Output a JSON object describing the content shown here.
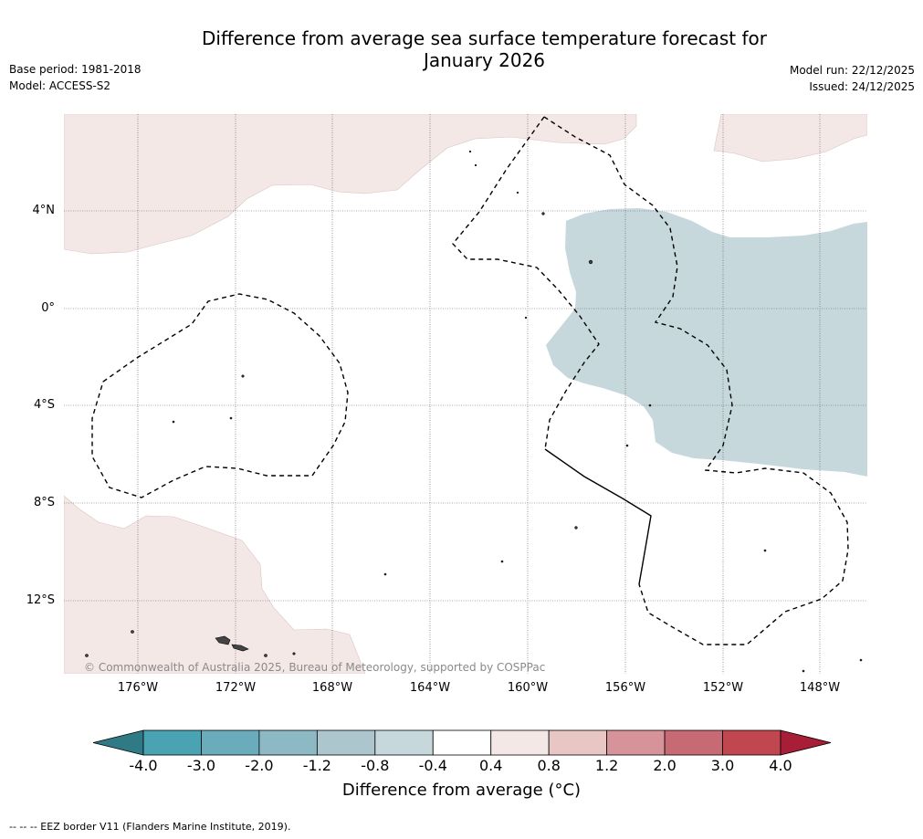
{
  "title": {
    "line1": "Difference from average sea surface temperature forecast for",
    "line2": "January 2026"
  },
  "meta": {
    "base_period": "Base period: 1981-2018",
    "model": "Model: ACCESS-S2",
    "model_run": "Model run: 22/12/2025",
    "issued": "Issued: 24/12/2025"
  },
  "map": {
    "lat_labels": [
      "4°N",
      "0°",
      "4°S",
      "8°S",
      "12°S"
    ],
    "lon_labels": [
      "176°W",
      "172°W",
      "168°W",
      "164°W",
      "160°W",
      "156°W",
      "152°W",
      "148°W"
    ],
    "copyright": "© Commonwealth of Australia 2025, Bureau of Meteorology, supported by COSPPac",
    "anomaly_regions": [
      {
        "name": "north-warm",
        "category": "0.4 to 0.8"
      },
      {
        "name": "northeast-warm",
        "category": "0.4 to 0.8"
      },
      {
        "name": "southwest-warm",
        "category": "0.4 to 0.8"
      },
      {
        "name": "east-cool",
        "category": "-0.8 to -0.4"
      }
    ],
    "colors": {
      "warm_light": "#f4e8e7",
      "cool_light": "#c7d8dd",
      "grid": "#555555",
      "eez": "#000000"
    }
  },
  "colorbar": {
    "ticks": [
      "-4.0",
      "-3.0",
      "-2.0",
      "-1.2",
      "-0.8",
      "-0.4",
      "0.4",
      "0.8",
      "1.2",
      "2.0",
      "3.0",
      "4.0"
    ],
    "colors": [
      "#2f7a85",
      "#4aa3b3",
      "#6aacbb",
      "#8db9c5",
      "#adc6ce",
      "#c7d8dd",
      "#ffffff",
      "#f4e8e7",
      "#e8c6c3",
      "#d6939a",
      "#c86a74",
      "#c0474f",
      "#a81e37"
    ],
    "label": "Difference from average (°C)"
  },
  "footer": "--  --  -- EEZ border V11 (Flanders Marine Institute, 2019)."
}
